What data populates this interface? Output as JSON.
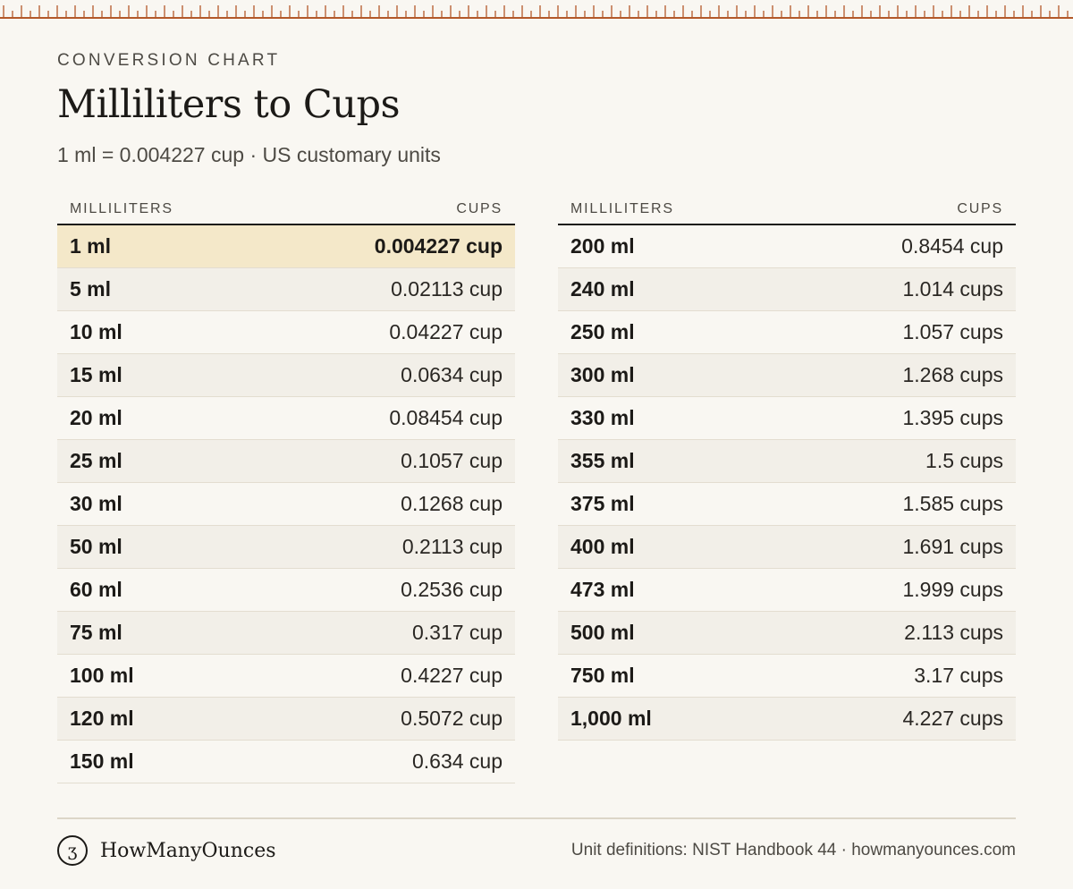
{
  "colors": {
    "ruler": "#b3592a",
    "background": "#f9f7f2",
    "highlight_row": "#f4e8c9",
    "alt_row": "#f2efe8"
  },
  "header": {
    "eyebrow": "CONVERSION CHART",
    "title": "Milliliters to Cups",
    "subtitle": "1 ml = 0.004227 cup · US customary units"
  },
  "tables": {
    "left": {
      "col_ml": "MILLILITERS",
      "col_cups": "CUPS",
      "rows": [
        {
          "ml": "1 ml",
          "cups": "0.004227 cup"
        },
        {
          "ml": "5 ml",
          "cups": "0.02113 cup"
        },
        {
          "ml": "10 ml",
          "cups": "0.04227 cup"
        },
        {
          "ml": "15 ml",
          "cups": "0.0634 cup"
        },
        {
          "ml": "20 ml",
          "cups": "0.08454 cup"
        },
        {
          "ml": "25 ml",
          "cups": "0.1057 cup"
        },
        {
          "ml": "30 ml",
          "cups": "0.1268 cup"
        },
        {
          "ml": "50 ml",
          "cups": "0.2113 cup"
        },
        {
          "ml": "60 ml",
          "cups": "0.2536 cup"
        },
        {
          "ml": "75 ml",
          "cups": "0.317 cup"
        },
        {
          "ml": "100 ml",
          "cups": "0.4227 cup"
        },
        {
          "ml": "120 ml",
          "cups": "0.5072 cup"
        },
        {
          "ml": "150 ml",
          "cups": "0.634 cup"
        }
      ]
    },
    "right": {
      "col_ml": "MILLILITERS",
      "col_cups": "CUPS",
      "rows": [
        {
          "ml": "200 ml",
          "cups": "0.8454 cup"
        },
        {
          "ml": "240 ml",
          "cups": "1.014 cups"
        },
        {
          "ml": "250 ml",
          "cups": "1.057 cups"
        },
        {
          "ml": "300 ml",
          "cups": "1.268 cups"
        },
        {
          "ml": "330 ml",
          "cups": "1.395 cups"
        },
        {
          "ml": "355 ml",
          "cups": "1.5 cups"
        },
        {
          "ml": "375 ml",
          "cups": "1.585 cups"
        },
        {
          "ml": "400 ml",
          "cups": "1.691 cups"
        },
        {
          "ml": "473 ml",
          "cups": "1.999 cups"
        },
        {
          "ml": "500 ml",
          "cups": "2.113 cups"
        },
        {
          "ml": "750 ml",
          "cups": "3.17 cups"
        },
        {
          "ml": "1,000 ml",
          "cups": "4.227 cups"
        }
      ]
    }
  },
  "footer": {
    "brand_glyph": "ʒ",
    "brand_name": "HowManyOunces",
    "source": "Unit definitions: NIST Handbook 44 · howmanyounces.com"
  }
}
